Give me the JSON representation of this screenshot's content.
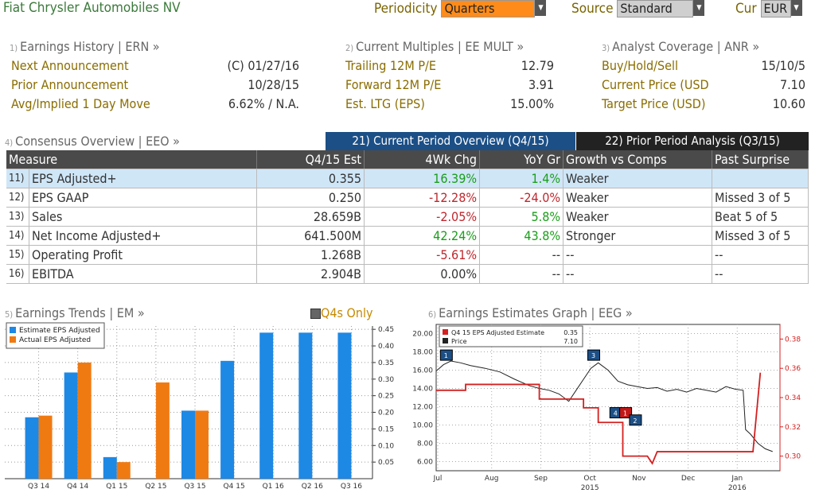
{
  "app": {
    "company": "Fiat Chrysler Automobiles NV",
    "periodicity_label": "Periodicity",
    "periodicity_value": "Quarters",
    "source_label": "Source",
    "source_value": "Standard",
    "cur_label": "Cur",
    "cur_value": "EUR"
  },
  "sections": {
    "earnings_history": {
      "num": "1)",
      "title": "Earnings History | ERN »",
      "rows": [
        {
          "label": "Next Announcement",
          "value": "(C)  01/27/16"
        },
        {
          "label": "Prior Announcement",
          "value": "10/28/15"
        },
        {
          "label": "Avg/Implied 1 Day Move",
          "value": "6.62% / N.A."
        }
      ]
    },
    "current_multiples": {
      "num": "2)",
      "title": "Current Multiples | EE MULT »",
      "rows": [
        {
          "label": "Trailing 12M P/E",
          "value": "12.79"
        },
        {
          "label": "Forward 12M P/E",
          "value": "3.91"
        },
        {
          "label": "Est. LTG (EPS)",
          "value": "15.00%"
        }
      ]
    },
    "analyst_coverage": {
      "num": "3)",
      "title": "Analyst Coverage | ANR »",
      "rows": [
        {
          "label": "Buy/Hold/Sell",
          "value": "15/10/5"
        },
        {
          "label": "Current Price (USD",
          "value": "7.10"
        },
        {
          "label": "Target Price (USD)",
          "value": "10.60"
        }
      ]
    }
  },
  "consensus": {
    "num": "4)",
    "title": "Consensus Overview | EEO »",
    "tab_current": "21) Current Period Overview (Q4/15)",
    "tab_prior": "22) Prior Period Analysis (Q3/15)",
    "headers": [
      "Measure",
      "Q4/15 Est",
      "4Wk Chg",
      "YoY Gr",
      "Growth vs Comps",
      "Past Surprise"
    ],
    "rows": [
      {
        "idx": "11)",
        "measure": "EPS Adjusted+",
        "est": "0.355",
        "chg": "16.39%",
        "chg_sign": "pos",
        "yoy": "1.4%",
        "yoy_sign": "pos",
        "growth": "Weaker",
        "surprise": ""
      },
      {
        "idx": "12)",
        "measure": "EPS GAAP",
        "est": "0.250",
        "chg": "-12.28%",
        "chg_sign": "neg",
        "yoy": "-24.0%",
        "yoy_sign": "neg",
        "growth": "Weaker",
        "surprise": "Missed 3 of 5"
      },
      {
        "idx": "13)",
        "measure": "Sales",
        "est": "28.659B",
        "chg": "-2.05%",
        "chg_sign": "neg",
        "yoy": "5.8%",
        "yoy_sign": "pos",
        "growth": "Weaker",
        "surprise": "Beat 5 of 5"
      },
      {
        "idx": "14)",
        "measure": "Net Income Adjusted+",
        "est": "641.500M",
        "chg": "42.24%",
        "chg_sign": "pos",
        "yoy": "43.8%",
        "yoy_sign": "pos",
        "growth": "Stronger",
        "surprise": "Missed 3 of 5"
      },
      {
        "idx": "15)",
        "measure": "Operating Profit",
        "est": "1.268B",
        "chg": "-5.61%",
        "chg_sign": "neg",
        "yoy": "--",
        "yoy_sign": "",
        "growth": "--",
        "surprise": "--"
      },
      {
        "idx": "16)",
        "measure": "EBITDA",
        "est": "2.904B",
        "chg": "0.00%",
        "chg_sign": "",
        "yoy": "--",
        "yoy_sign": "",
        "growth": "--",
        "surprise": "--"
      }
    ]
  },
  "trends": {
    "num": "5)",
    "title": "Earnings Trends | EM »",
    "q4s_only_label": "Q4s Only"
  },
  "estimates_graph": {
    "num": "6)",
    "title": "Earnings Estimates Graph | EEG »"
  },
  "colors": {
    "estimate_blue": "#1e88e5",
    "actual_orange": "#f07a12",
    "estimate_line_red": "#d42020",
    "price_black": "#222222",
    "tab_active": "#1c4f86",
    "highlight_row": "#cfe6f7",
    "positive": "#1a9e1a",
    "negative": "#c0272d"
  },
  "chart_data": [
    {
      "type": "bar",
      "categories": [
        "Q3 14",
        "Q4 14",
        "Q1 15",
        "Q2 15",
        "Q3 15",
        "Q4 15",
        "Q1 16",
        "Q2 16",
        "Q3 16"
      ],
      "series": [
        {
          "name": "Estimate EPS Adjusted",
          "values": [
            0.185,
            0.32,
            0.065,
            null,
            0.205,
            0.355,
            0.44,
            0.44,
            0.44
          ]
        },
        {
          "name": "Actual EPS Adjusted",
          "values": [
            0.19,
            0.35,
            0.05,
            0.29,
            0.205,
            null,
            null,
            null,
            null
          ]
        }
      ],
      "y_ticks": [
        "0.05",
        "0.10",
        "0.15",
        "0.20",
        "0.25",
        "0.30",
        "0.35",
        "0.40",
        "0.45"
      ],
      "ylim": [
        0,
        0.46
      ],
      "legend_position": "top-left",
      "grid": true
    },
    {
      "type": "line",
      "x_ticks": [
        "Jul",
        "Aug",
        "Sep",
        "Oct",
        "Nov",
        "Dec",
        "Jan"
      ],
      "x_year_labels": [
        "2015",
        "2016"
      ],
      "y_left_ticks": [
        "6.00",
        "8.00",
        "10.00",
        "12.00",
        "14.00",
        "16.00",
        "18.00",
        "20.00"
      ],
      "y_right_ticks": [
        "0.30",
        "0.32",
        "0.34",
        "0.36",
        "0.38"
      ],
      "legend": [
        {
          "name": "Q4 15 EPS Adjusted Estimate",
          "value": "0.35"
        },
        {
          "name": "Price",
          "value": "7.10"
        }
      ],
      "series": [
        {
          "name": "Q4 15 EPS Adjusted Estimate",
          "axis": "right",
          "points": [
            [
              0,
              0.345
            ],
            [
              0.6,
              0.345
            ],
            [
              0.6,
              0.349
            ],
            [
              2.1,
              0.349
            ],
            [
              2.1,
              0.339
            ],
            [
              3.0,
              0.339
            ],
            [
              3.0,
              0.333
            ],
            [
              3.3,
              0.333
            ],
            [
              3.3,
              0.323
            ],
            [
              3.8,
              0.323
            ],
            [
              3.8,
              0.3
            ],
            [
              4.3,
              0.3
            ],
            [
              4.4,
              0.295
            ],
            [
              4.5,
              0.303
            ],
            [
              6.45,
              0.303
            ],
            [
              6.6,
              0.357
            ]
          ]
        },
        {
          "name": "Price",
          "axis": "left",
          "points": [
            [
              0,
              15.9
            ],
            [
              0.15,
              16.6
            ],
            [
              0.3,
              17.0
            ],
            [
              0.5,
              16.8
            ],
            [
              0.7,
              16.5
            ],
            [
              1.0,
              16.2
            ],
            [
              1.3,
              15.8
            ],
            [
              1.6,
              15.0
            ],
            [
              1.9,
              14.3
            ],
            [
              2.1,
              14.0
            ],
            [
              2.3,
              13.8
            ],
            [
              2.5,
              13.4
            ],
            [
              2.7,
              12.6
            ],
            [
              2.85,
              13.8
            ],
            [
              3.0,
              15.0
            ],
            [
              3.15,
              16.2
            ],
            [
              3.3,
              16.8
            ],
            [
              3.5,
              16.0
            ],
            [
              3.7,
              14.8
            ],
            [
              3.9,
              14.4
            ],
            [
              4.1,
              14.2
            ],
            [
              4.3,
              14.0
            ],
            [
              4.5,
              14.1
            ],
            [
              4.7,
              13.7
            ],
            [
              4.9,
              13.9
            ],
            [
              5.1,
              13.6
            ],
            [
              5.3,
              14.0
            ],
            [
              5.5,
              13.8
            ],
            [
              5.7,
              13.6
            ],
            [
              5.9,
              14.2
            ],
            [
              6.1,
              13.9
            ],
            [
              6.25,
              13.8
            ],
            [
              6.3,
              9.5
            ],
            [
              6.4,
              9.0
            ],
            [
              6.55,
              8.0
            ],
            [
              6.7,
              7.4
            ],
            [
              6.85,
              7.1
            ]
          ]
        }
      ],
      "event_markers": [
        {
          "label": "1",
          "x": 0.2
        },
        {
          "label": "3",
          "x": 3.2
        },
        {
          "label": "4",
          "x": 3.65
        },
        {
          "label": "1",
          "x": 3.85
        },
        {
          "label": "2",
          "x": 4.05
        }
      ]
    }
  ]
}
